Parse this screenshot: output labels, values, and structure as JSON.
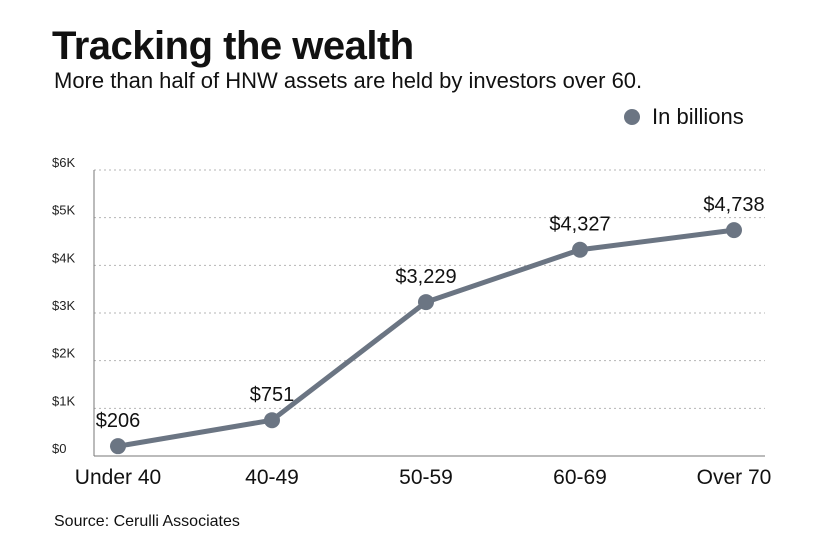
{
  "chart_data": {
    "type": "line",
    "title": "Tracking the wealth",
    "subtitle": "More than half of HNW assets are held by investors over 60.",
    "categories": [
      "Under 40",
      "40-49",
      "50-59",
      "60-69",
      "Over 70"
    ],
    "series": [
      {
        "name": "In billions",
        "values": [
          206,
          751,
          3229,
          4327,
          4738
        ],
        "labels": [
          "$206",
          "$751",
          "$3,229",
          "$4,327",
          "$4,738"
        ]
      }
    ],
    "ylim": [
      0,
      6000
    ],
    "yticks": [
      0,
      1000,
      2000,
      3000,
      4000,
      5000,
      6000
    ],
    "ytick_labels": [
      "$0",
      "$1K",
      "$2K",
      "$3K",
      "$4K",
      "$5K",
      "$6K"
    ],
    "xlabel": "",
    "ylabel": "",
    "grid": true,
    "legend_position": "top-right",
    "source": "Source: Cerulli Associates"
  },
  "colors": {
    "series": "#6b7583",
    "grid": "#b5b5b5",
    "axis": "#777777"
  }
}
